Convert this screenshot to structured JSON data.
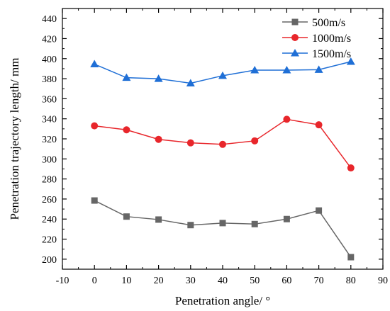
{
  "chart_data": {
    "type": "line",
    "xlabel": "Penetration angle/ °",
    "ylabel": "Penetration trajectory length/ mm",
    "x": [
      0,
      10,
      20,
      30,
      40,
      50,
      60,
      70,
      80
    ],
    "xlim": [
      -10,
      90
    ],
    "ylim": [
      190,
      450
    ],
    "xticks": [
      "-10",
      "0",
      "10",
      "20",
      "30",
      "40",
      "50",
      "60",
      "70",
      "80",
      "90"
    ],
    "yticks": [
      "200",
      "220",
      "240",
      "260",
      "280",
      "300",
      "320",
      "340",
      "360",
      "380",
      "400",
      "420",
      "440"
    ],
    "grid": false,
    "legend_position": "top-right",
    "series": [
      {
        "name": "500m/s",
        "marker": "square",
        "color": "#666666",
        "values": [
          258.5,
          242.5,
          239.5,
          234,
          236,
          235,
          240,
          248.5,
          202
        ]
      },
      {
        "name": "1000m/s",
        "marker": "circle",
        "color": "#e8262b",
        "values": [
          333,
          329,
          319.5,
          316,
          314.5,
          318,
          339.5,
          334,
          291
        ]
      },
      {
        "name": "1500m/s",
        "marker": "triangle",
        "color": "#1f6fd6",
        "values": [
          394.5,
          381,
          380,
          375.5,
          383,
          388.5,
          388.5,
          389,
          397
        ]
      }
    ]
  }
}
